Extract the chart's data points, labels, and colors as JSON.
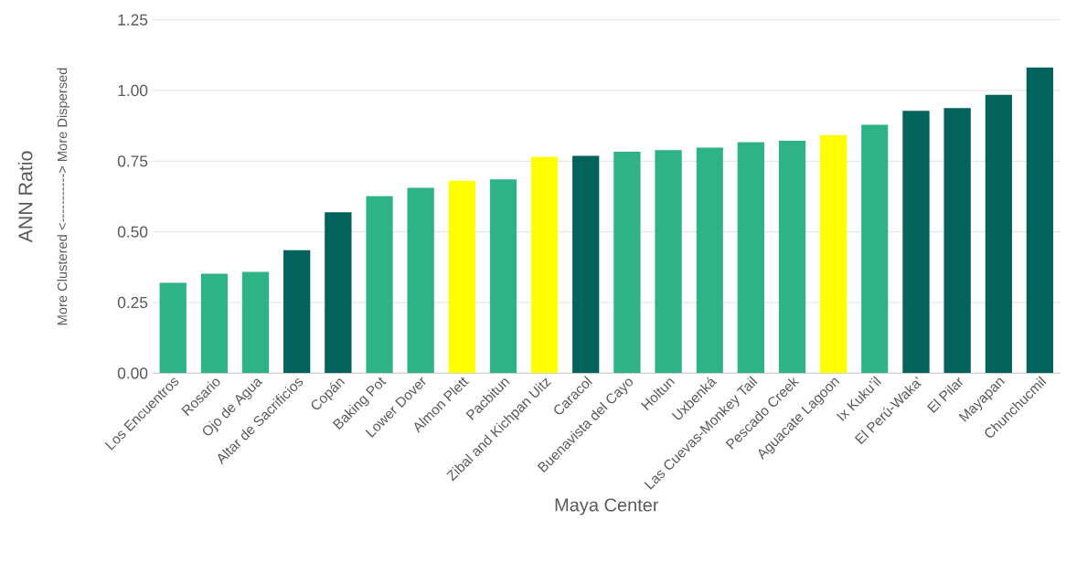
{
  "chart_data": {
    "type": "bar",
    "xlabel": "Maya Center",
    "ylabel": "ANN Ratio",
    "annotations": [
      "More Clustered <-----------> More Dispersed"
    ],
    "categories": [
      "Los Encuentros",
      "Rosario",
      "Ojo de Agua",
      "Altar de Sacrificios",
      "Copán",
      "Baking Pot",
      "Lower Dover",
      "Almon Plett",
      "Pacbitun",
      "Zibal and Kichpan Uitz",
      "Caracol",
      "Buenavista del Cayo",
      "Holtun",
      "Uxbenká",
      "Las Cuevas-Monkey Tail",
      "Pescado Creek",
      "Aguacate Lagoon",
      "Ix Kuku’il",
      "El Perú-Waka'",
      "El Pilar",
      "Mayapan",
      "Chunchucmil"
    ],
    "values": [
      0.32,
      0.352,
      0.358,
      0.435,
      0.569,
      0.627,
      0.656,
      0.681,
      0.686,
      0.766,
      0.769,
      0.783,
      0.789,
      0.798,
      0.817,
      0.822,
      0.842,
      0.879,
      0.928,
      0.938,
      0.985,
      1.082
    ],
    "colors": [
      "#2eb386",
      "#2eb386",
      "#2eb386",
      "#02625c",
      "#02625c",
      "#2eb386",
      "#2eb386",
      "#ffff00",
      "#2eb386",
      "#ffff00",
      "#02625c",
      "#2eb386",
      "#2eb386",
      "#2eb386",
      "#2eb386",
      "#2eb386",
      "#ffff00",
      "#2eb386",
      "#02625c",
      "#02625c",
      "#02625c",
      "#02625c"
    ],
    "ylim": [
      0,
      1.25
    ],
    "yticks": [
      {
        "value": 0,
        "label": "0.00"
      },
      {
        "value": 0.25,
        "label": "0.25"
      },
      {
        "value": 0.5,
        "label": "0.50"
      },
      {
        "value": 0.75,
        "label": "0.75"
      },
      {
        "value": 1,
        "label": "1.00"
      },
      {
        "value": 1.25,
        "label": "1.25"
      }
    ],
    "grid": "y"
  }
}
